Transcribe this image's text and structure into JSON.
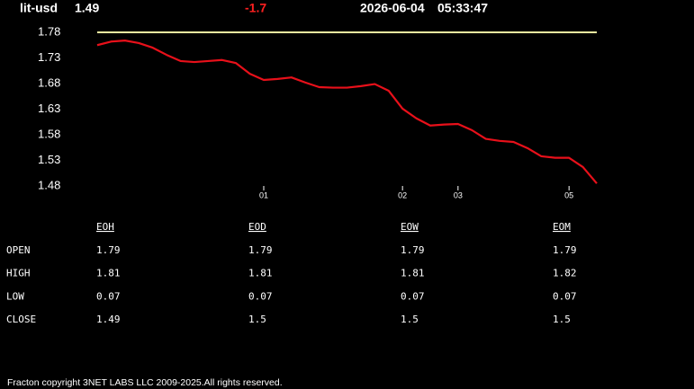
{
  "header": {
    "symbol": "lit-usd",
    "price": "1.49",
    "change": "-1.7",
    "date": "2026-06-04",
    "time": "05:33:47"
  },
  "chart_data": {
    "type": "line",
    "categories": [
      null,
      null,
      null,
      null,
      null,
      null,
      null,
      null,
      null,
      null,
      null,
      null,
      "01",
      null,
      null,
      null,
      null,
      null,
      null,
      null,
      null,
      null,
      "02",
      null,
      null,
      null,
      "03",
      null,
      null,
      null,
      null,
      null,
      null,
      null,
      "05",
      null,
      null
    ],
    "series": [
      {
        "color": "#e8101a",
        "values": [
          1.755,
          1.762,
          1.764,
          1.759,
          1.75,
          1.736,
          1.724,
          1.722,
          1.724,
          1.726,
          1.72,
          1.699,
          1.687,
          1.689,
          1.692,
          1.682,
          1.673,
          1.672,
          1.672,
          1.675,
          1.679,
          1.666,
          1.631,
          1.612,
          1.598,
          1.6,
          1.601,
          1.589,
          1.572,
          1.568,
          1.566,
          1.554,
          1.538,
          1.535,
          1.535,
          1.517,
          1.485
        ]
      }
    ],
    "reference_line": {
      "value": 1.78,
      "color": "#f0f0a0"
    },
    "ylim": [
      1.48,
      1.78
    ],
    "yticks": [
      1.48,
      1.53,
      1.58,
      1.63,
      1.68,
      1.73,
      1.78
    ]
  },
  "table": {
    "columns": [
      "EOH",
      "EOD",
      "EOW",
      "EOM"
    ],
    "rows": [
      [
        "OPEN",
        "1.79",
        "1.79",
        "1.79",
        "1.79"
      ],
      [
        "HIGH",
        "1.81",
        "1.81",
        "1.81",
        "1.82"
      ],
      [
        "LOW",
        "0.07",
        "0.07",
        "0.07",
        "0.07"
      ],
      [
        "CLOSE",
        "1.49",
        "1.5",
        "1.5",
        "1.5"
      ]
    ]
  },
  "footer": "Fracton copyright 3NET LABS LLC 2009-2025.All rights reserved."
}
